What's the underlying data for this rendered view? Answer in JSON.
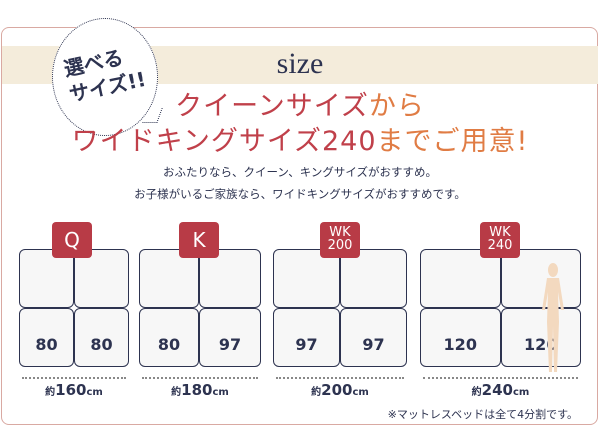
{
  "header": {
    "title": "size",
    "bubble_line1": "選べる",
    "bubble_line2": "サイズ!!"
  },
  "headline": {
    "line1_a": "クイーンサイズ",
    "line1_b": "から",
    "line2_a": "ワイドキングサイズ240",
    "line2_b": "までご用意!"
  },
  "description": [
    "おふたりなら、クイーン、キングサイズがおすすめ。",
    "お子様がいるご家族なら、ワイドキングサイズがおすすめです。"
  ],
  "beds": [
    {
      "badge": "Q",
      "badge_sub": "",
      "widths": [
        "80",
        "80"
      ],
      "prefix": "約",
      "total": "160",
      "unit": "cm"
    },
    {
      "badge": "K",
      "badge_sub": "",
      "widths": [
        "80",
        "97"
      ],
      "prefix": "約",
      "total": "180",
      "unit": "cm"
    },
    {
      "badge": "WK",
      "badge_sub": "200",
      "widths": [
        "97",
        "97"
      ],
      "prefix": "約",
      "total": "200",
      "unit": "cm"
    },
    {
      "badge": "WK",
      "badge_sub": "240",
      "widths": [
        "120",
        "120"
      ],
      "prefix": "約",
      "total": "240",
      "unit": "cm"
    }
  ],
  "footnote": "※マットレスベッドは全て4分割です。",
  "colors": {
    "badge": "#b83b46",
    "navy": "#2d3350",
    "title_red": "#c0404a",
    "title_orange": "#e07c44",
    "band": "#f4ecdb",
    "frame": "#d9a9a2"
  }
}
